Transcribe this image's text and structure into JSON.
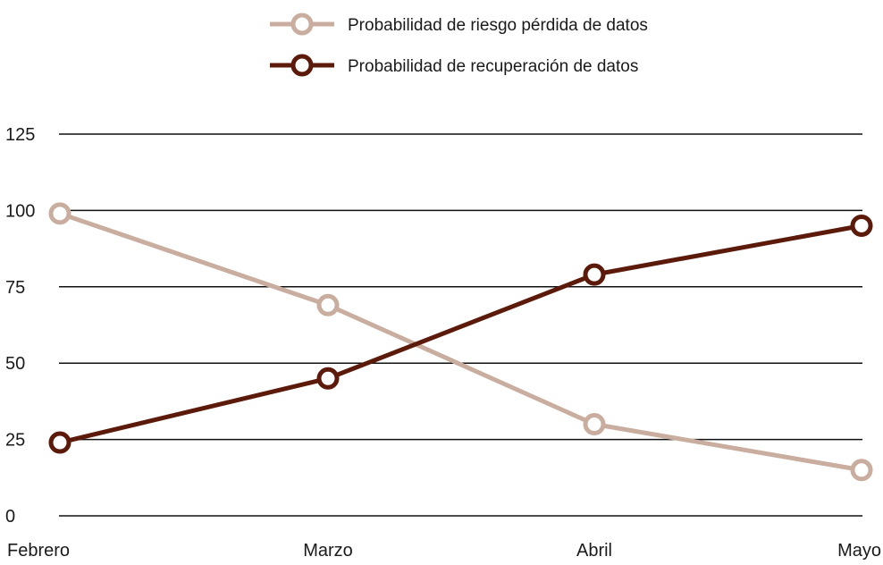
{
  "chart_data": {
    "type": "line",
    "categories": [
      "Febrero",
      "Marzo",
      "Abril",
      "Mayo"
    ],
    "series": [
      {
        "name": "Probabilidad de riesgo pérdida de datos",
        "values": [
          99,
          69,
          30,
          15
        ],
        "color": "#c9ad9f"
      },
      {
        "name": "Probabilidad de recuperación de datos",
        "values": [
          24,
          45,
          79,
          95
        ],
        "color": "#5c1a0b"
      }
    ],
    "yticks": [
      0,
      25,
      50,
      75,
      100,
      125
    ],
    "ylim": [
      0,
      125
    ],
    "grid": true,
    "legend_position": "top-center"
  }
}
